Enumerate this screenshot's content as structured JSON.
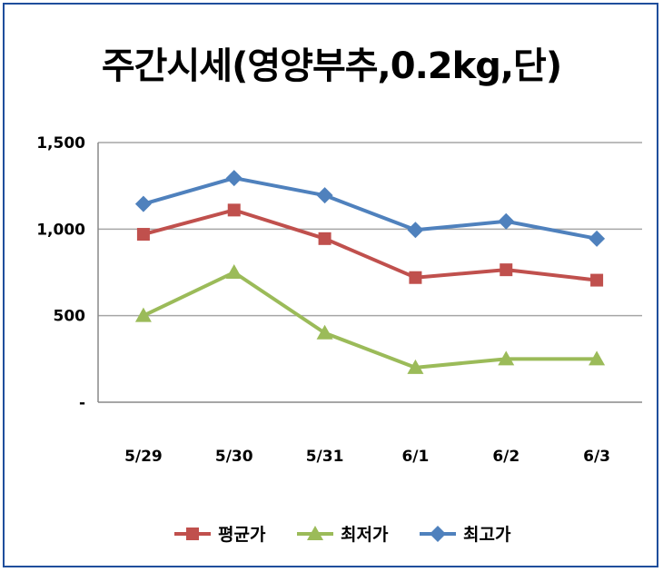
{
  "chart_data": {
    "type": "line",
    "title": "주간시세(영양부추,0.2kg,단)",
    "categories": [
      "5/29",
      "5/30",
      "5/31",
      "6/1",
      "6/2",
      "6/3"
    ],
    "y_ticks": [
      "-",
      "500",
      "1,000",
      "1,500"
    ],
    "ylim": [
      0,
      1500
    ],
    "grid": true,
    "legend_position": "bottom",
    "series": [
      {
        "name": "평균가",
        "color": "#c0504d",
        "marker": "square",
        "values": [
          970,
          1110,
          945,
          720,
          765,
          705
        ]
      },
      {
        "name": "최저가",
        "color": "#9bbb59",
        "marker": "triangle",
        "values": [
          500,
          750,
          400,
          200,
          250,
          250
        ]
      },
      {
        "name": "최고가",
        "color": "#4f81bd",
        "marker": "diamond",
        "values": [
          1145,
          1295,
          1195,
          995,
          1045,
          945
        ]
      }
    ]
  }
}
